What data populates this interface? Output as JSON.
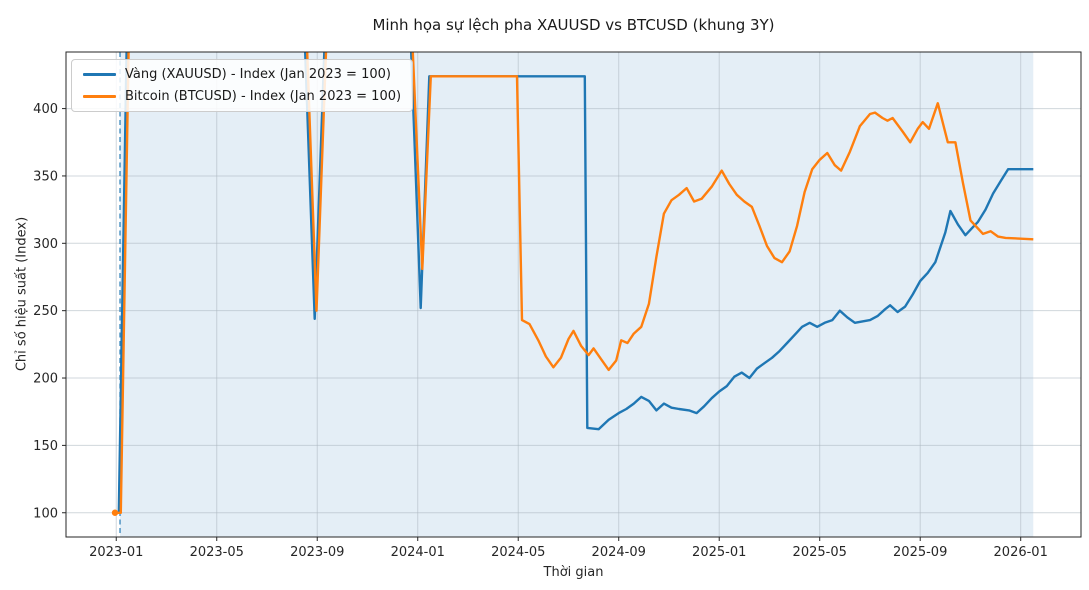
{
  "chart_data": {
    "type": "line",
    "title": "Minh họa sự lệch pha XAUUSD vs BTCUSD (khung 3Y)",
    "xlabel": "Thời gian",
    "ylabel": "Chỉ số hiệu suất (Index)",
    "x_axis_unit": "months since 2023-01",
    "xlim": [
      -2.0,
      38.4
    ],
    "ylim": [
      82,
      442
    ],
    "grid": true,
    "grid_color": "rgba(172,183,192,0.55)",
    "spine_color": "#262626",
    "yticks": [
      100,
      150,
      200,
      250,
      300,
      350,
      400
    ],
    "xticks": [
      {
        "label": "2023-01",
        "month": 0
      },
      {
        "label": "2023-05",
        "month": 4
      },
      {
        "label": "2023-09",
        "month": 8
      },
      {
        "label": "2024-01",
        "month": 12
      },
      {
        "label": "2024-05",
        "month": 16
      },
      {
        "label": "2024-09",
        "month": 20
      },
      {
        "label": "2025-01",
        "month": 24
      },
      {
        "label": "2025-05",
        "month": 28
      },
      {
        "label": "2025-09",
        "month": 32
      },
      {
        "label": "2026-01",
        "month": 36
      }
    ],
    "highlight_span": {
      "start_month": 0.15,
      "end_month": 36.5,
      "color": "#1f77b4",
      "opacity": 0.12
    },
    "start_line": {
      "month": 0.15,
      "color": "#1f77b4",
      "style": "dashed"
    },
    "start_marker": {
      "month": -0.05,
      "value": 100,
      "color": "#ff7f0e",
      "radius": 3.2
    },
    "legend_position": "upper-left",
    "series": [
      {
        "name": "xauusd",
        "label": "Vàng (XAUUSD) - Index (Jan 2023 = 100)",
        "color": "#1f77b4",
        "points": [
          [
            -0.15,
            100
          ],
          [
            0.1,
            100
          ],
          [
            0.42,
            452
          ],
          [
            7.5,
            452
          ],
          [
            7.9,
            244
          ],
          [
            8.3,
            452
          ],
          [
            11.72,
            452
          ],
          [
            12.12,
            252
          ],
          [
            12.46,
            424
          ],
          [
            18.65,
            424
          ],
          [
            18.75,
            163
          ],
          [
            19.2,
            162
          ],
          [
            19.6,
            169
          ],
          [
            20.0,
            174
          ],
          [
            20.3,
            177
          ],
          [
            20.6,
            181
          ],
          [
            20.9,
            186
          ],
          [
            21.2,
            183
          ],
          [
            21.5,
            176
          ],
          [
            21.8,
            181
          ],
          [
            22.1,
            178
          ],
          [
            22.4,
            177
          ],
          [
            22.8,
            176
          ],
          [
            23.1,
            174
          ],
          [
            23.4,
            179
          ],
          [
            23.7,
            185
          ],
          [
            24.0,
            190
          ],
          [
            24.3,
            194
          ],
          [
            24.6,
            201
          ],
          [
            24.9,
            204
          ],
          [
            25.2,
            200
          ],
          [
            25.5,
            207
          ],
          [
            25.8,
            211
          ],
          [
            26.1,
            215
          ],
          [
            26.4,
            220
          ],
          [
            26.7,
            226
          ],
          [
            27.0,
            232
          ],
          [
            27.3,
            238
          ],
          [
            27.6,
            241
          ],
          [
            27.9,
            238
          ],
          [
            28.2,
            241
          ],
          [
            28.5,
            243
          ],
          [
            28.8,
            250
          ],
          [
            29.1,
            245
          ],
          [
            29.4,
            241
          ],
          [
            29.7,
            242
          ],
          [
            30.0,
            243
          ],
          [
            30.3,
            246
          ],
          [
            30.6,
            251
          ],
          [
            30.8,
            254
          ],
          [
            31.1,
            249
          ],
          [
            31.4,
            253
          ],
          [
            31.7,
            262
          ],
          [
            32.0,
            272
          ],
          [
            32.3,
            278
          ],
          [
            32.6,
            286
          ],
          [
            33.0,
            308
          ],
          [
            33.2,
            324
          ],
          [
            33.5,
            314
          ],
          [
            33.8,
            306
          ],
          [
            34.1,
            312
          ],
          [
            34.3,
            316
          ],
          [
            34.6,
            325
          ],
          [
            34.9,
            337
          ],
          [
            35.2,
            346
          ],
          [
            35.5,
            355
          ],
          [
            36.5,
            355
          ]
        ]
      },
      {
        "name": "btcusd",
        "label": "Bitcoin (BTCUSD) - Index (Jan 2023 = 100)",
        "color": "#ff7f0e",
        "points": [
          [
            -0.15,
            100
          ],
          [
            0.18,
            100
          ],
          [
            0.5,
            452
          ],
          [
            7.58,
            452
          ],
          [
            7.97,
            250
          ],
          [
            8.37,
            452
          ],
          [
            11.78,
            452
          ],
          [
            12.18,
            281
          ],
          [
            12.52,
            424
          ],
          [
            15.95,
            424
          ],
          [
            16.15,
            243
          ],
          [
            16.45,
            240
          ],
          [
            16.8,
            228
          ],
          [
            17.1,
            216
          ],
          [
            17.4,
            208
          ],
          [
            17.7,
            215
          ],
          [
            18.0,
            229
          ],
          [
            18.2,
            235
          ],
          [
            18.5,
            224
          ],
          [
            18.8,
            217
          ],
          [
            19.0,
            222
          ],
          [
            19.3,
            214
          ],
          [
            19.6,
            206
          ],
          [
            19.9,
            213
          ],
          [
            20.1,
            228
          ],
          [
            20.35,
            226
          ],
          [
            20.6,
            233
          ],
          [
            20.9,
            238
          ],
          [
            21.2,
            255
          ],
          [
            21.5,
            290
          ],
          [
            21.8,
            322
          ],
          [
            22.1,
            332
          ],
          [
            22.4,
            336
          ],
          [
            22.7,
            341
          ],
          [
            23.0,
            331
          ],
          [
            23.3,
            333
          ],
          [
            23.7,
            342
          ],
          [
            24.1,
            354
          ],
          [
            24.4,
            344
          ],
          [
            24.7,
            336
          ],
          [
            25.0,
            331
          ],
          [
            25.3,
            327
          ],
          [
            25.6,
            313
          ],
          [
            25.9,
            298
          ],
          [
            26.2,
            289
          ],
          [
            26.5,
            286
          ],
          [
            26.8,
            294
          ],
          [
            27.1,
            313
          ],
          [
            27.4,
            338
          ],
          [
            27.7,
            355
          ],
          [
            28.0,
            362
          ],
          [
            28.3,
            367
          ],
          [
            28.6,
            358
          ],
          [
            28.85,
            354
          ],
          [
            29.2,
            368
          ],
          [
            29.6,
            387
          ],
          [
            30.0,
            396
          ],
          [
            30.2,
            397
          ],
          [
            30.5,
            393
          ],
          [
            30.7,
            391
          ],
          [
            30.9,
            393
          ],
          [
            31.3,
            383
          ],
          [
            31.6,
            375
          ],
          [
            31.9,
            385
          ],
          [
            32.1,
            390
          ],
          [
            32.35,
            385
          ],
          [
            32.7,
            404
          ],
          [
            33.1,
            375
          ],
          [
            33.4,
            375
          ],
          [
            33.7,
            345
          ],
          [
            34.0,
            317
          ],
          [
            34.3,
            311
          ],
          [
            34.5,
            307
          ],
          [
            34.8,
            309
          ],
          [
            35.1,
            305
          ],
          [
            35.4,
            304
          ],
          [
            36.5,
            303
          ]
        ]
      }
    ]
  }
}
